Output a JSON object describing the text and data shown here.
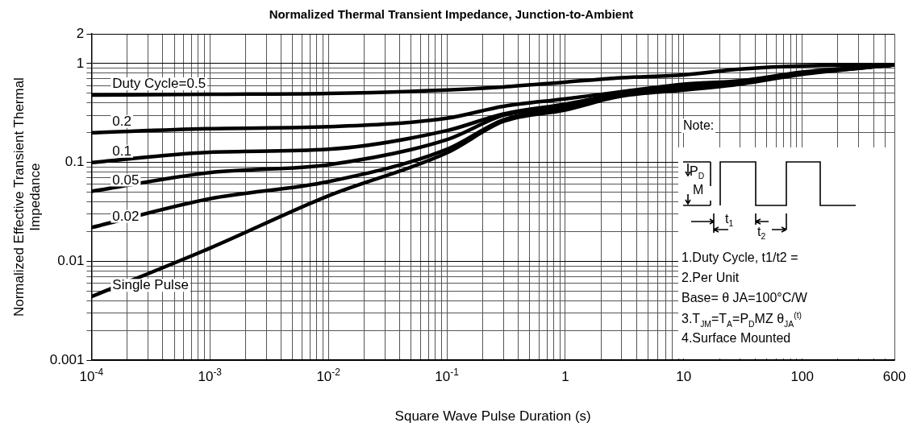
{
  "chart_data": {
    "type": "line",
    "title": "Normalized Thermal Transient Impedance, Junction-to-Ambient",
    "xlabel": "Square Wave Pulse Duration (s)",
    "ylabel": "Normalized Effective Transient Thermal Impedance",
    "x": [
      0.0001,
      0.001,
      0.01,
      0.1,
      0.3,
      1,
      3,
      10,
      30,
      100,
      600
    ],
    "series": [
      {
        "name": "Duty Cycle=0.5",
        "color": "#000000",
        "values": [
          0.48,
          0.49,
          0.5,
          0.54,
          0.58,
          0.65,
          0.72,
          0.77,
          0.88,
          0.95,
          0.97
        ]
      },
      {
        "name": "0.2",
        "color": "#000000",
        "values": [
          0.2,
          0.22,
          0.23,
          0.28,
          0.37,
          0.44,
          0.52,
          0.62,
          0.67,
          0.82,
          0.97
        ]
      },
      {
        "name": "0.1",
        "color": "#000000",
        "values": [
          0.1,
          0.127,
          0.136,
          0.21,
          0.31,
          0.39,
          0.5,
          0.59,
          0.65,
          0.8,
          0.97
        ]
      },
      {
        "name": "0.05",
        "color": "#000000",
        "values": [
          0.051,
          0.079,
          0.095,
          0.17,
          0.3,
          0.37,
          0.49,
          0.57,
          0.64,
          0.8,
          0.97
        ]
      },
      {
        "name": "0.02",
        "color": "#000000",
        "values": [
          0.022,
          0.043,
          0.064,
          0.136,
          0.27,
          0.36,
          0.48,
          0.56,
          0.63,
          0.79,
          0.97
        ]
      },
      {
        "name": "Single Pulse",
        "color": "#000000",
        "values": [
          0.0044,
          0.0136,
          0.046,
          0.125,
          0.26,
          0.34,
          0.47,
          0.54,
          0.62,
          0.78,
          0.97
        ]
      }
    ],
    "log": "xy",
    "xlim": [
      0.0001,
      600
    ],
    "ylim": [
      0.001,
      2
    ],
    "xticks": [
      {
        "value": 0.0001,
        "label": "10$^{-4}$"
      },
      {
        "value": 0.0002,
        "label": null
      },
      {
        "value": 0.0003,
        "label": null
      },
      {
        "value": 0.0004,
        "label": null
      },
      {
        "value": 0.0005,
        "label": null
      },
      {
        "value": 0.0006,
        "label": null
      },
      {
        "value": 0.0007,
        "label": null
      },
      {
        "value": 0.0008,
        "label": null
      },
      {
        "value": 0.0009,
        "label": null
      },
      {
        "value": 0.001,
        "label": "10$^{-3}$"
      },
      {
        "value": 0.002,
        "label": null
      },
      {
        "value": 0.003,
        "label": null
      },
      {
        "value": 0.004,
        "label": null
      },
      {
        "value": 0.005,
        "label": null
      },
      {
        "value": 0.006,
        "label": null
      },
      {
        "value": 0.007,
        "label": null
      },
      {
        "value": 0.008,
        "label": null
      },
      {
        "value": 0.009,
        "label": null
      },
      {
        "value": 0.01,
        "label": "10$^{-2}$"
      },
      {
        "value": 0.02,
        "label": null
      },
      {
        "value": 0.03,
        "label": null
      },
      {
        "value": 0.04,
        "label": null
      },
      {
        "value": 0.05,
        "label": null
      },
      {
        "value": 0.06,
        "label": null
      },
      {
        "value": 0.07,
        "label": null
      },
      {
        "value": 0.08,
        "label": null
      },
      {
        "value": 0.09,
        "label": null
      },
      {
        "value": 0.1,
        "label": "10$^{-1}$"
      },
      {
        "value": 0.2,
        "label": null
      },
      {
        "value": 0.3,
        "label": null
      },
      {
        "value": 0.4,
        "label": null
      },
      {
        "value": 0.5,
        "label": null
      },
      {
        "value": 0.6,
        "label": null
      },
      {
        "value": 0.7,
        "label": null
      },
      {
        "value": 0.8,
        "label": null
      },
      {
        "value": 0.9,
        "label": null
      },
      1,
      {
        "value": 2,
        "label": null
      },
      {
        "value": 3,
        "label": null
      },
      {
        "value": 4,
        "label": null
      },
      {
        "value": 5,
        "label": null
      },
      {
        "value": 6,
        "label": null
      },
      {
        "value": 7,
        "label": null
      },
      {
        "value": 8,
        "label": null
      },
      {
        "value": 9,
        "label": null
      },
      10,
      {
        "value": 20,
        "label": null
      },
      {
        "value": 30,
        "label": null
      },
      {
        "value": 40,
        "label": null
      },
      {
        "value": 50,
        "label": null
      },
      {
        "value": 60,
        "label": null
      },
      {
        "value": 70,
        "label": null
      },
      {
        "value": 80,
        "label": null
      },
      {
        "value": 90,
        "label": null
      },
      100,
      {
        "value": 200,
        "label": null
      },
      {
        "value": 300,
        "label": null
      },
      {
        "value": 400,
        "label": null
      },
      {
        "value": 500,
        "label": null
      },
      600
    ],
    "yticks": [
      0.001,
      {
        "value": 0.002,
        "label": null
      },
      {
        "value": 0.003,
        "label": null
      },
      {
        "value": 0.004,
        "label": null
      },
      {
        "value": 0.005,
        "label": null
      },
      {
        "value": 0.006,
        "label": null
      },
      {
        "value": 0.007,
        "label": null
      },
      {
        "value": 0.008,
        "label": null
      },
      {
        "value": 0.009,
        "label": null
      },
      0.01,
      {
        "value": 0.02,
        "label": null
      },
      {
        "value": 0.03,
        "label": null
      },
      {
        "value": 0.04,
        "label": null
      },
      {
        "value": 0.05,
        "label": null
      },
      {
        "value": 0.06,
        "label": null
      },
      {
        "value": 0.07,
        "label": null
      },
      {
        "value": 0.08,
        "label": null
      },
      {
        "value": 0.09,
        "label": null
      },
      0.1,
      {
        "value": 0.2,
        "label": null
      },
      {
        "value": 0.3,
        "label": null
      },
      {
        "value": 0.4,
        "label": null
      },
      {
        "value": 0.5,
        "label": null
      },
      {
        "value": 0.6,
        "label": null
      },
      {
        "value": 0.7,
        "label": null
      },
      {
        "value": 0.8,
        "label": null
      },
      {
        "value": 0.9,
        "label": null
      },
      1,
      2
    ],
    "grid": true,
    "legend": false,
    "marker": "none",
    "line_style": "solid",
    "annotations": [
      "Note:",
      "P$_{D}$",
      "M",
      "t$_{1}$",
      "t$_{2}$",
      "1.Duty Cycle, t1/t2 =",
      "2.Per Unit",
      "Base= θ JA=100°C/W",
      "3.T$_{JM}$=T$_{A}$=P$_{D}$MZ θ$_{JA}$$^{(t)}$",
      "4.Surface Mounted"
    ]
  }
}
